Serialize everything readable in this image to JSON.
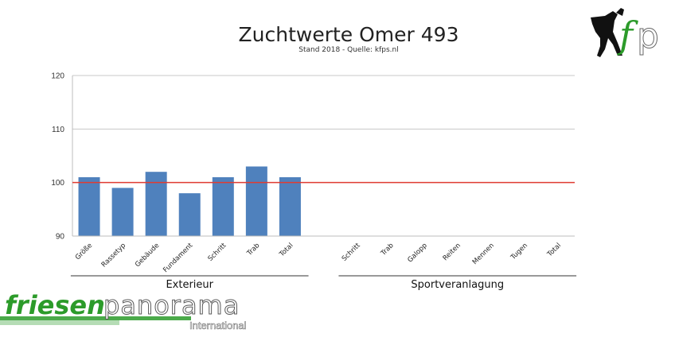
{
  "chart_data": {
    "type": "bar",
    "title": "Zuchtwerte Omer 493",
    "subtitle": "Stand 2018 - Quelle: kfps.nl",
    "ylim": [
      90,
      120
    ],
    "yticks": [
      90,
      100,
      110,
      120
    ],
    "reference_line": 100,
    "reference_color": "#e03c31",
    "bar_color": "#4f81bd",
    "grid": true,
    "categories": [
      "Größe",
      "Rassetyp",
      "Gebäude",
      "Fundament",
      "Schritt",
      "Trab",
      "Total",
      "Schritt",
      "Trab",
      "Galopp",
      "Reiten",
      "Mennen",
      "Tugen",
      "Total"
    ],
    "values": [
      101,
      99,
      102,
      98,
      101,
      103,
      101,
      null,
      null,
      null,
      null,
      null,
      null,
      null
    ],
    "groups": [
      {
        "label": "Exterieur",
        "count": 7
      },
      {
        "label": "Sportveranlagung",
        "count": 7
      }
    ]
  },
  "watermark": {
    "part1": "friesen",
    "part2": "panorama",
    "part3": "International",
    "brand_color": "#2c9b2a"
  },
  "logo": {
    "text": "fp",
    "icon": "horse-logo-icon"
  }
}
